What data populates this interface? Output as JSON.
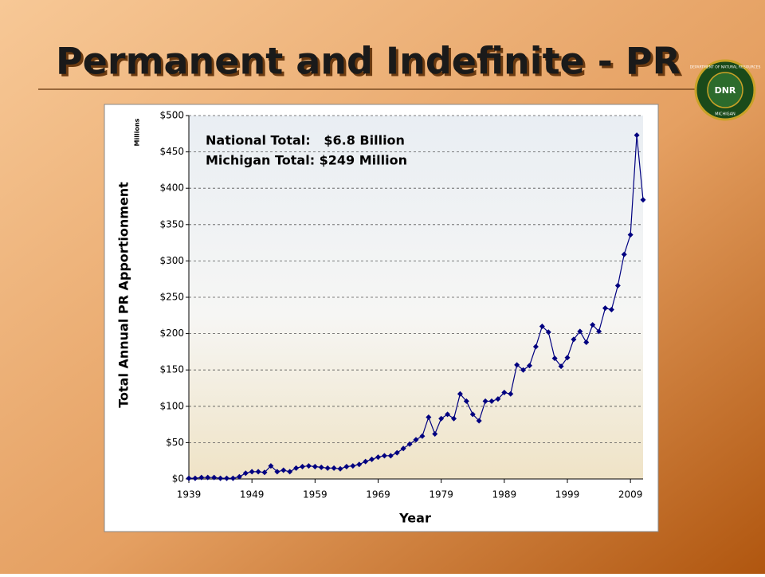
{
  "slide_title": "Permanent and Indefinite - PR",
  "logo": {
    "text": "DNR",
    "ring_top": "DEPARTMENT OF NATURAL RESOURCES",
    "ring_bottom": "MICHIGAN"
  },
  "chart_data": {
    "type": "line",
    "x_label": "Year",
    "y_label": "Total Annual PR Apportionment",
    "y_unit": "Millions",
    "annotations": [
      "National Total:   $6.8 Billion",
      "Michigan Total: $249 Million"
    ],
    "x": [
      1939,
      1940,
      1941,
      1942,
      1943,
      1944,
      1945,
      1946,
      1947,
      1948,
      1949,
      1950,
      1951,
      1952,
      1953,
      1954,
      1955,
      1956,
      1957,
      1958,
      1959,
      1960,
      1961,
      1962,
      1963,
      1964,
      1965,
      1966,
      1967,
      1968,
      1969,
      1970,
      1971,
      1972,
      1973,
      1974,
      1975,
      1976,
      1977,
      1978,
      1979,
      1980,
      1981,
      1982,
      1983,
      1984,
      1985,
      1986,
      1987,
      1988,
      1989,
      1990,
      1991,
      1992,
      1993,
      1994,
      1995,
      1996,
      1997,
      1998,
      1999,
      2000,
      2001,
      2002,
      2003,
      2004,
      2005,
      2006,
      2007,
      2008,
      2009,
      2010,
      2011
    ],
    "series": [
      {
        "name": "PR Apportionment",
        "color": "#000080",
        "values": [
          1,
          1,
          2,
          2,
          2,
          1,
          1,
          1,
          3,
          8,
          10,
          10,
          9,
          18,
          10,
          12,
          10,
          15,
          17,
          18,
          17,
          16,
          15,
          15,
          14,
          17,
          18,
          20,
          24,
          27,
          30,
          32,
          32,
          36,
          42,
          48,
          54,
          59,
          85,
          62,
          83,
          89,
          83,
          117,
          107,
          89,
          80,
          107,
          107,
          110,
          119,
          117,
          157,
          150,
          156,
          182,
          210,
          202,
          166,
          155,
          167,
          192,
          203,
          188,
          212,
          203,
          235,
          233,
          266,
          309,
          336,
          473,
          384
        ]
      }
    ],
    "xlim": [
      1939,
      2011
    ],
    "xticks": [
      1939,
      1949,
      1959,
      1969,
      1979,
      1989,
      1999,
      2009
    ],
    "ylim": [
      0,
      500
    ],
    "yticks": [
      {
        "value": 0,
        "label": "$0"
      },
      {
        "value": 50,
        "label": "$50"
      },
      {
        "value": 100,
        "label": "$100"
      },
      {
        "value": 150,
        "label": "$150"
      },
      {
        "value": 200,
        "label": "$200"
      },
      {
        "value": 250,
        "label": "$250"
      },
      {
        "value": 300,
        "label": "$300"
      },
      {
        "value": 350,
        "label": "$350"
      },
      {
        "value": 400,
        "label": "$400"
      },
      {
        "value": 450,
        "label": "$450"
      },
      {
        "value": 500,
        "label": "$500"
      }
    ],
    "grid": true
  }
}
